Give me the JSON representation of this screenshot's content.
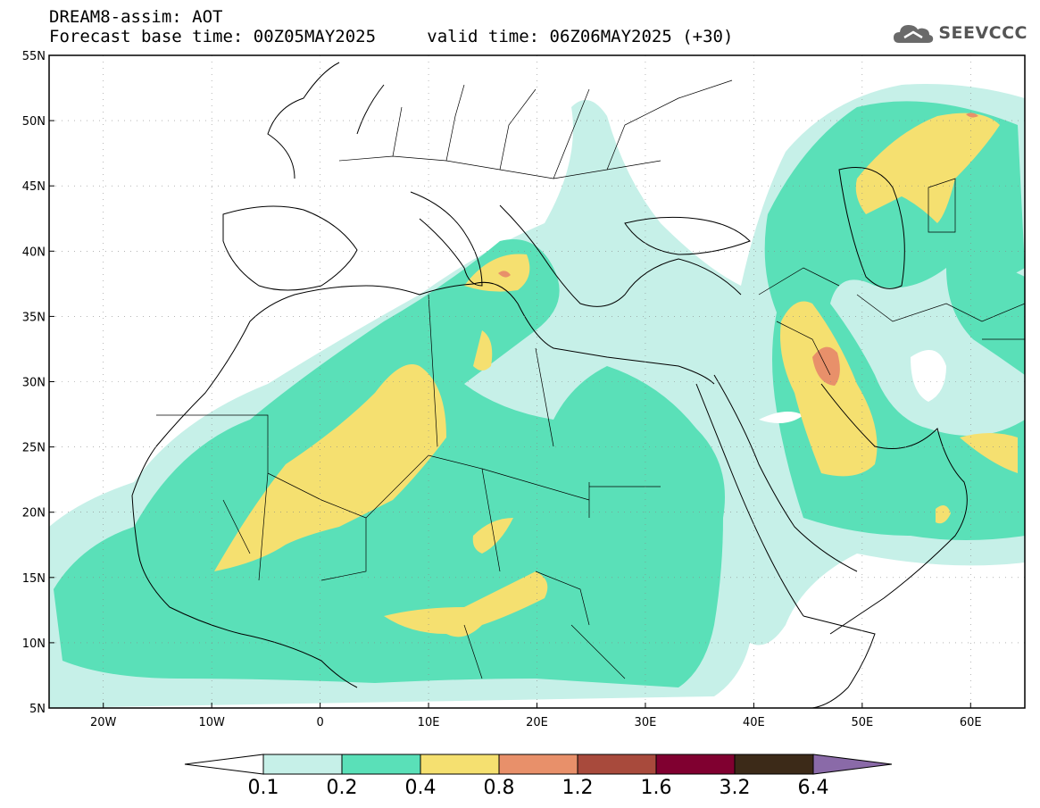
{
  "header": {
    "title": "DREAM8-assim: AOT",
    "base_time": "Forecast base time: 00Z05MAY2025",
    "valid_time": "valid time: 06Z06MAY2025 (+30)"
  },
  "logo": {
    "text": "SEEVCCC",
    "icon": "cloud-logo-icon"
  },
  "map": {
    "lon_range": [
      -25,
      65
    ],
    "lat_range": [
      5,
      55
    ],
    "lon_ticks": [
      "20W",
      "10W",
      "0",
      "10E",
      "20E",
      "30E",
      "40E",
      "50E",
      "60E"
    ],
    "lat_ticks": [
      "55N",
      "50N",
      "45N",
      "40N",
      "35N",
      "30N",
      "25N",
      "20N",
      "15N",
      "10N",
      "5N"
    ],
    "grid": true
  },
  "colorbar": {
    "labels": [
      "0.1",
      "0.2",
      "0.4",
      "0.8",
      "1.2",
      "1.6",
      "3.2",
      "6.4"
    ],
    "colors": [
      "#c6f0e8",
      "#5ae0b8",
      "#f5e070",
      "#e8906a",
      "#a84a3c",
      "#800030",
      "#3c2a18"
    ],
    "under_color": "#ffffff",
    "over_color": "#8a6aa8"
  },
  "legend_colors": {
    "low": "#c6f0e8",
    "medium": "#5ae0b8",
    "high": "#f5e070",
    "very_high": "#e8906a",
    "extreme": "#a84a3c"
  }
}
